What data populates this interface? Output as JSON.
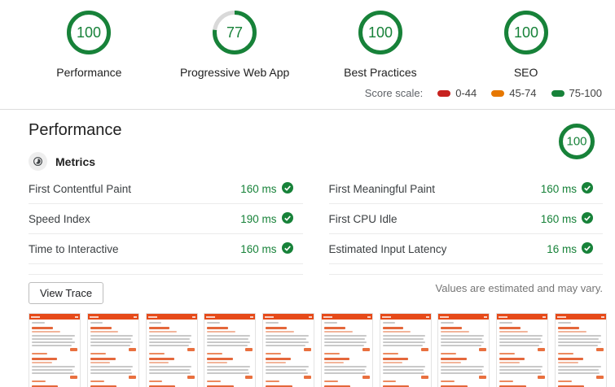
{
  "scores": [
    {
      "label": "Performance",
      "value": 100
    },
    {
      "label": "Progressive Web App",
      "value": 77
    },
    {
      "label": "Best Practices",
      "value": 100
    },
    {
      "label": "SEO",
      "value": 100
    }
  ],
  "score_scale": {
    "label": "Score scale:",
    "ranges": [
      {
        "label": "0-44",
        "color": "#c7221f"
      },
      {
        "label": "45-74",
        "color": "#e67700"
      },
      {
        "label": "75-100",
        "color": "#178239"
      }
    ]
  },
  "performance_section": {
    "title": "Performance",
    "score": 100,
    "metrics_header": "Metrics",
    "metrics_left": [
      {
        "name": "First Contentful Paint",
        "value": "160 ms"
      },
      {
        "name": "Speed Index",
        "value": "190 ms"
      },
      {
        "name": "Time to Interactive",
        "value": "160 ms"
      }
    ],
    "metrics_right": [
      {
        "name": "First Meaningful Paint",
        "value": "160 ms"
      },
      {
        "name": "First CPU Idle",
        "value": "160 ms"
      },
      {
        "name": "Estimated Input Latency",
        "value": "16 ms"
      }
    ],
    "view_trace_label": "View Trace",
    "disclaimer": "Values are estimated and may vary."
  },
  "filmstrip": {
    "frame_count": 10
  },
  "colors": {
    "green": "#178239",
    "gauge_remainder": "#d9d9d9",
    "thumb_orange": "#e64a19"
  }
}
